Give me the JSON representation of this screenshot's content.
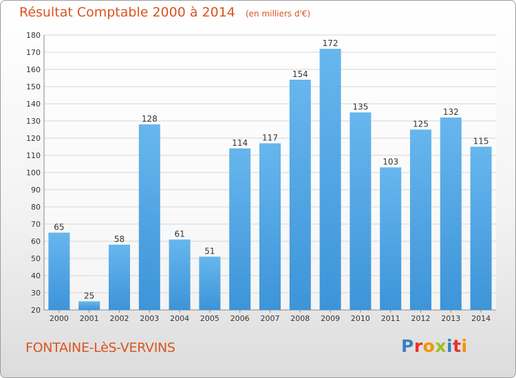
{
  "title": "Résultat Comptable 2000 à 2014",
  "subtitle": "(en milliers d'€)",
  "location": "FONTAINE-LèS-VERVINS",
  "logo": {
    "text": "Proxiti",
    "letters": [
      "P",
      "r",
      "o",
      "x",
      "i",
      "t",
      "i"
    ],
    "colors": [
      "#3a7fc4",
      "#e6332a",
      "#f39200",
      "#9ac31c",
      "#3a7fc4",
      "#e6332a",
      "#f39200"
    ]
  },
  "colors": {
    "bar": "#3d94d8",
    "bar_light": "#67b6ee",
    "grid": "#d5d5d5",
    "accent": "#d9541f"
  },
  "chart_data": {
    "type": "bar",
    "title": "Résultat Comptable 2000 à 2014",
    "subtitle": "(en milliers d'€)",
    "categories": [
      "2000",
      "2001",
      "2002",
      "2003",
      "2004",
      "2005",
      "2006",
      "2007",
      "2008",
      "2009",
      "2010",
      "2011",
      "2012",
      "2013",
      "2014"
    ],
    "values": [
      65,
      25,
      58,
      128,
      61,
      51,
      114,
      117,
      154,
      172,
      135,
      103,
      125,
      132,
      115
    ],
    "ylim": [
      20,
      180
    ],
    "yticks": [
      20,
      30,
      40,
      50,
      60,
      70,
      80,
      90,
      100,
      110,
      120,
      130,
      140,
      150,
      160,
      170,
      180
    ],
    "grid": true,
    "xlabel": "",
    "ylabel": ""
  }
}
